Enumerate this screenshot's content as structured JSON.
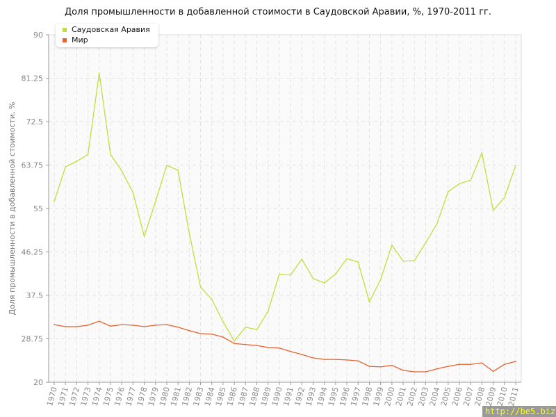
{
  "chart_data": {
    "type": "line",
    "title": "Доля промышленности в добавленной стоимости в Саудовской Аравии, %, 1970-2011 гг.",
    "xlabel": "",
    "ylabel": "Доля промышленности в добавленной стоимости, %",
    "ylim": [
      20,
      90
    ],
    "yticks": [
      "20",
      "28.75",
      "37.5",
      "46.25",
      "55",
      "63.75",
      "72.5",
      "81.25",
      "90"
    ],
    "grid": true,
    "legend_position": "top-left",
    "x": [
      1970,
      1971,
      1972,
      1973,
      1974,
      1975,
      1976,
      1977,
      1978,
      1979,
      1980,
      1981,
      1982,
      1983,
      1984,
      1985,
      1986,
      1987,
      1988,
      1989,
      1990,
      1991,
      1992,
      1993,
      1994,
      1995,
      1996,
      1997,
      1998,
      1999,
      2000,
      2001,
      2002,
      2003,
      2004,
      2005,
      2006,
      2007,
      2008,
      2009,
      2010,
      2011
    ],
    "series": [
      {
        "name": "Саудовская Аравия",
        "color": "#c3dd3a",
        "values": [
          56.4,
          63.4,
          64.5,
          65.9,
          82.3,
          65.9,
          62.6,
          58.2,
          49.4,
          56.4,
          63.7,
          62.7,
          50.0,
          39.2,
          36.7,
          32.2,
          28.3,
          31.1,
          30.6,
          34.3,
          41.8,
          41.6,
          44.8,
          40.9,
          40.0,
          41.8,
          44.9,
          44.2,
          36.2,
          40.7,
          47.6,
          44.4,
          44.5,
          48.1,
          51.9,
          58.4,
          60.0,
          60.7,
          66.2,
          54.6,
          57.2,
          63.7
        ]
      },
      {
        "name": "Мир",
        "color": "#e8612c",
        "values": [
          31.6,
          31.2,
          31.2,
          31.5,
          32.3,
          31.3,
          31.6,
          31.5,
          31.2,
          31.5,
          31.6,
          31.1,
          30.4,
          29.8,
          29.7,
          29.1,
          27.8,
          27.6,
          27.4,
          27.0,
          26.9,
          26.2,
          25.6,
          24.9,
          24.6,
          24.6,
          24.5,
          24.3,
          23.2,
          23.1,
          23.4,
          22.4,
          22.1,
          22.1,
          22.7,
          23.2,
          23.6,
          23.6,
          23.9,
          22.2,
          23.6,
          24.2
        ]
      }
    ]
  },
  "watermark": "http://be5.biz"
}
